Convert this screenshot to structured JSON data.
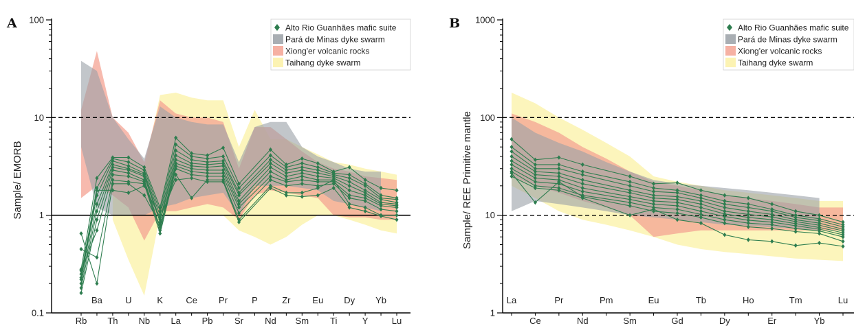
{
  "chart_data": [
    {
      "panel_label": "A",
      "type": "line",
      "ylabel": "Sample/ EMORB",
      "xlabel": "",
      "yscale": "log",
      "ylim": [
        0.1,
        100
      ],
      "yticks": [
        "0.1",
        "1",
        "10",
        "100"
      ],
      "categories": [
        "Rb",
        "Ba",
        "Th",
        "U",
        "Nb",
        "K",
        "La",
        "Ce",
        "Pb",
        "Pr",
        "Sr",
        "P",
        "Nd",
        "Zr",
        "Sm",
        "Eu",
        "Ti",
        "Dy",
        "Y",
        "Yb",
        "Lu"
      ],
      "reference_lines": [
        {
          "value": 10,
          "style": "dashed"
        },
        {
          "value": 1,
          "style": "solid"
        }
      ],
      "legend": {
        "placement": "top-right",
        "entries": [
          {
            "label": "Alto Rio Guanhães mafic suite",
            "kind": "marker",
            "color": "#2e7d4f"
          },
          {
            "label": "Pará de Minas dyke swarm",
            "kind": "band",
            "color": "#9aa0a6"
          },
          {
            "label": "Xiong'er volcanic rocks",
            "kind": "band",
            "color": "#f4a393"
          },
          {
            "label": "Taihang dyke swarm",
            "kind": "band",
            "color": "#fbf1a6"
          }
        ]
      },
      "bands": [
        {
          "name": "Taihang dyke swarm",
          "color": "#fbf1a6",
          "upper": [
            null,
            null,
            3.5,
            4,
            3,
            17,
            18,
            16,
            15,
            15,
            5,
            12,
            6,
            6,
            5,
            4.2,
            3.5,
            3.3,
            3,
            2.8,
            2.6
          ],
          "lower": [
            null,
            null,
            0.9,
            0.35,
            0.15,
            1,
            1,
            1,
            1,
            1,
            0.7,
            0.6,
            0.5,
            0.6,
            0.8,
            1,
            1,
            0.9,
            0.8,
            0.7,
            0.65
          ]
        },
        {
          "name": "Xiong'er volcanic rocks",
          "color": "#f4a393",
          "upper": [
            12,
            48,
            10,
            7,
            3.5,
            15,
            11,
            10,
            10,
            9,
            3,
            8,
            8,
            6,
            4.5,
            3.5,
            3,
            2.8,
            2.5,
            2.4,
            2.3
          ],
          "lower": [
            1.5,
            2,
            1.6,
            1.2,
            0.55,
            1.1,
            1.1,
            1.2,
            1.3,
            1.2,
            0.9,
            1.6,
            1.8,
            1.7,
            1.6,
            1.5,
            1,
            0.95,
            0.95,
            0.9,
            0.9
          ]
        },
        {
          "name": "Pará de Minas dyke swarm",
          "color": "#9aa0a6",
          "upper": [
            38,
            30,
            10,
            6,
            3.8,
            13,
            10,
            9,
            8.5,
            8.5,
            3.5,
            8,
            9,
            9,
            5,
            4,
            3.5,
            3,
            2.8,
            2.8,
            null
          ],
          "lower": [
            5,
            1.2,
            1,
            1,
            1,
            1.2,
            1.3,
            1.5,
            1.6,
            1.7,
            1,
            2,
            2,
            2,
            1.9,
            1.8,
            1.4,
            1.3,
            1.2,
            1.1,
            null
          ]
        }
      ],
      "series": [
        {
          "values": [
            0.28,
            2.4,
            3.9,
            3.9,
            3.1,
            1.2,
            6.2,
            4.3,
            4.1,
            4.9,
            2.1,
            null,
            4.7,
            3.3,
            3.8,
            3.4,
            2.8,
            3.1,
            2.3,
            1.9,
            1.8
          ]
        },
        {
          "values": [
            0.25,
            1.9,
            3.8,
            3.5,
            2.9,
            1.1,
            5.3,
            4,
            3.8,
            4,
            1.9,
            null,
            4.1,
            3.1,
            3.4,
            3.1,
            2.7,
            2.6,
            2.1,
            1.6,
            1.5
          ]
        },
        {
          "values": [
            0.22,
            1.6,
            3.6,
            3.2,
            2.7,
            1,
            4.6,
            3.7,
            3.5,
            3.6,
            1.7,
            null,
            3.7,
            2.9,
            3.1,
            2.9,
            2.6,
            2.4,
            2,
            1.5,
            1.45
          ]
        },
        {
          "values": [
            0.2,
            1.3,
            3.3,
            3,
            2.6,
            0.9,
            4.1,
            3.4,
            3.3,
            3.4,
            1.6,
            null,
            3.4,
            2.7,
            2.9,
            2.7,
            2.5,
            2.2,
            1.8,
            1.45,
            1.35
          ]
        },
        {
          "values": [
            0.18,
            1.1,
            3.1,
            2.9,
            2.5,
            0.85,
            3.7,
            3.2,
            3.1,
            3.2,
            1.4,
            null,
            3.1,
            2.5,
            2.7,
            2.5,
            2.4,
            2,
            1.7,
            1.35,
            1.3
          ]
        },
        {
          "values": [
            0.16,
            0.9,
            2.9,
            2.7,
            2.3,
            0.75,
            3.4,
            3,
            2.9,
            2.9,
            1.3,
            null,
            2.8,
            2.3,
            2.5,
            2.3,
            2.3,
            1.8,
            1.6,
            1.3,
            1.25
          ]
        },
        {
          "values": [
            0.27,
            0.7,
            2.6,
            2.5,
            2.2,
            0.7,
            3.2,
            2.8,
            2.7,
            2.7,
            1.2,
            null,
            2.5,
            2.2,
            2.3,
            2.2,
            2.2,
            1.6,
            1.5,
            1.25,
            1.2
          ]
        },
        {
          "values": [
            0.45,
            0.37,
            2.3,
            2.2,
            2.1,
            0.65,
            3,
            2.6,
            2.5,
            2.5,
            1.05,
            null,
            2.3,
            2,
            2.1,
            2,
            2.1,
            1.5,
            1.4,
            1.15,
            1.1
          ]
        },
        {
          "values": [
            0.65,
            0.2,
            2.1,
            2.1,
            1.6,
            0.8,
            2.6,
            1.5,
            2.3,
            2.3,
            0.9,
            null,
            2,
            1.7,
            1.7,
            1.9,
            2.3,
            1.3,
            1.2,
            1,
            1
          ]
        },
        {
          "values": [
            0.23,
            1.8,
            1.8,
            1.7,
            2,
            0.95,
            2.3,
            2.4,
            2.2,
            2.2,
            0.85,
            null,
            1.9,
            1.6,
            1.55,
            1.6,
            1.9,
            1.2,
            1.1,
            0.98,
            0.9
          ]
        }
      ]
    },
    {
      "panel_label": "B",
      "type": "line",
      "ylabel": "Sample/ REE Primitive mantle",
      "xlabel": "",
      "yscale": "log",
      "ylim": [
        1,
        1000
      ],
      "yticks": [
        "1",
        "10",
        "100",
        "1000"
      ],
      "categories": [
        "La",
        "Ce",
        "Pr",
        "Nd",
        "Pm",
        "Sm",
        "Eu",
        "Gd",
        "Tb",
        "Dy",
        "Ho",
        "Er",
        "Tm",
        "Yb",
        "Lu"
      ],
      "reference_lines": [
        {
          "value": 100,
          "style": "dashed"
        },
        {
          "value": 10,
          "style": "dashed"
        }
      ],
      "legend": {
        "placement": "top-right",
        "entries": [
          {
            "label": "Alto Rio Guanhães mafic suite",
            "kind": "marker",
            "color": "#2e7d4f"
          },
          {
            "label": "Pará de Minas dyke swarm",
            "kind": "band",
            "color": "#9aa0a6"
          },
          {
            "label": "Xiong'er volcanic rocks",
            "kind": "band",
            "color": "#f4a393"
          },
          {
            "label": "Taihang dyke swarm",
            "kind": "band",
            "color": "#fbf1a6"
          }
        ]
      },
      "bands": [
        {
          "name": "Taihang dyke swarm",
          "color": "#fbf1a6",
          "upper": [
            180,
            140,
            100,
            75,
            55,
            40,
            25,
            22,
            20,
            18,
            17,
            16,
            15,
            14,
            14
          ],
          "lower": [
            20,
            15,
            11,
            9,
            8,
            7,
            6,
            5,
            4.5,
            4.2,
            4,
            3.8,
            3.6,
            3.5,
            3.4
          ]
        },
        {
          "name": "Xiong'er volcanic rocks",
          "color": "#f4a393",
          "upper": [
            110,
            90,
            70,
            50,
            38,
            28,
            22,
            20,
            18,
            16,
            15,
            14,
            13,
            12,
            12
          ],
          "lower": [
            25,
            20,
            17,
            14,
            12,
            10,
            6,
            6.5,
            7,
            7,
            7,
            7,
            7,
            7,
            7
          ]
        },
        {
          "name": "Pará de Minas dyke swarm",
          "color": "#9aa0a6",
          "upper": [
            100,
            70,
            55,
            45,
            35,
            28,
            23,
            21,
            20,
            19,
            18,
            17,
            16,
            15,
            null
          ],
          "lower": [
            11,
            14,
            13,
            12,
            11,
            10,
            9.5,
            9,
            8.5,
            8,
            7.8,
            7.5,
            7.3,
            7,
            null
          ]
        }
      ],
      "series": [
        {
          "values": [
            60,
            37,
            39,
            33,
            null,
            25,
            21,
            21.5,
            18,
            16,
            15,
            13,
            11,
            10,
            8.5
          ]
        },
        {
          "values": [
            50,
            33,
            33,
            28,
            null,
            22,
            19,
            18,
            16,
            14,
            13,
            11.5,
            10,
            9.2,
            8
          ]
        },
        {
          "values": [
            45,
            30,
            30,
            26,
            null,
            20,
            17.5,
            17,
            15,
            13,
            12,
            11,
            9.5,
            8.8,
            7.6
          ]
        },
        {
          "values": [
            40,
            28,
            27,
            23,
            null,
            18,
            16,
            15.5,
            14,
            12,
            11,
            10.2,
            9,
            8.3,
            7.2
          ]
        },
        {
          "values": [
            36,
            26,
            25,
            21,
            null,
            17,
            15,
            14.5,
            13,
            11,
            10.2,
            9.6,
            8.6,
            7.9,
            6.9
          ]
        },
        {
          "values": [
            33,
            24,
            23,
            19,
            null,
            15.5,
            14,
            13.5,
            12,
            10.3,
            9.5,
            9,
            8.2,
            7.5,
            6.6
          ]
        },
        {
          "values": [
            30,
            22,
            21,
            17.5,
            null,
            14.5,
            13,
            12.5,
            11,
            9.7,
            8.9,
            8.5,
            7.8,
            7.2,
            6.3
          ]
        },
        {
          "values": [
            28,
            20,
            19,
            16,
            null,
            13.5,
            12,
            11.5,
            10.2,
            9,
            8.3,
            8,
            7.3,
            6.9,
            6
          ]
        },
        {
          "values": [
            27,
            13.5,
            22,
            15.5,
            null,
            12.5,
            11,
            10.5,
            9.5,
            8.3,
            7.6,
            7.3,
            6.8,
            6.5,
            5.4
          ]
        },
        {
          "values": [
            25,
            19,
            18,
            15,
            null,
            10,
            11.5,
            9,
            8.3,
            6.3,
            5.6,
            5.4,
            4.9,
            5.2,
            4.8
          ]
        }
      ]
    }
  ]
}
